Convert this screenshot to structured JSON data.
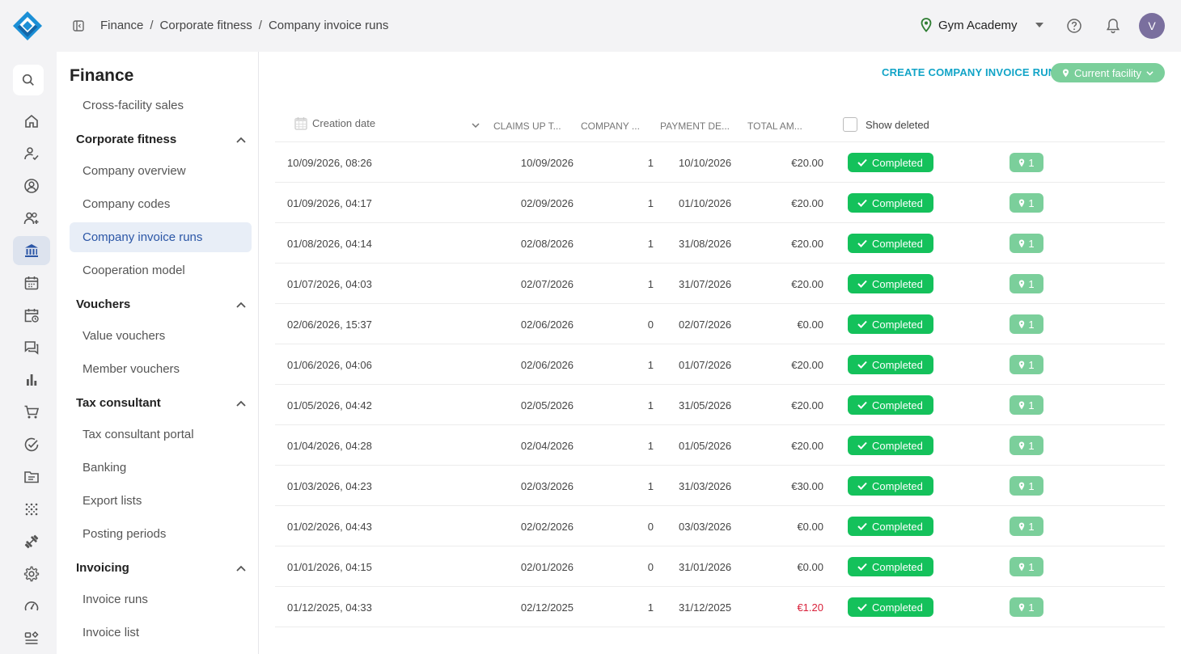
{
  "breadcrumb": [
    "Finance",
    "Corporate fitness",
    "Company invoice runs"
  ],
  "header": {
    "facility_name": "Gym Academy",
    "avatar_initial": "V"
  },
  "sidebar": {
    "title": "Finance",
    "items": {
      "cross_facility_sales": "Cross-facility sales",
      "corporate_fitness": "Corporate fitness",
      "company_overview": "Company overview",
      "company_codes": "Company codes",
      "company_invoice_runs": "Company invoice runs",
      "cooperation_model": "Cooperation model",
      "vouchers": "Vouchers",
      "value_vouchers": "Value vouchers",
      "member_vouchers": "Member vouchers",
      "tax_consultant": "Tax consultant",
      "tax_consultant_portal": "Tax consultant portal",
      "banking": "Banking",
      "export_lists": "Export lists",
      "posting_periods": "Posting periods",
      "invoicing": "Invoicing",
      "invoice_runs": "Invoice runs",
      "invoice_list": "Invoice list"
    }
  },
  "main": {
    "create_button": "CREATE COMPANY INVOICE RUN",
    "current_facility": "Current facility",
    "columns": {
      "creation_date": "Creation date",
      "claims": "CLAIMS UP T...",
      "company": "COMPANY ...",
      "payment": "PAYMENT DE...",
      "total": "TOTAL AM...",
      "show_deleted": "Show deleted"
    },
    "rows": [
      {
        "date": "10/09/2026, 08:26",
        "claims": "10/09/2026",
        "company": "1",
        "payment": "10/10/2026",
        "total": "€20.00",
        "status": "Completed",
        "facilities": "1"
      },
      {
        "date": "01/09/2026, 04:17",
        "claims": "02/09/2026",
        "company": "1",
        "payment": "01/10/2026",
        "total": "€20.00",
        "status": "Completed",
        "facilities": "1"
      },
      {
        "date": "01/08/2026, 04:14",
        "claims": "02/08/2026",
        "company": "1",
        "payment": "31/08/2026",
        "total": "€20.00",
        "status": "Completed",
        "facilities": "1"
      },
      {
        "date": "01/07/2026, 04:03",
        "claims": "02/07/2026",
        "company": "1",
        "payment": "31/07/2026",
        "total": "€20.00",
        "status": "Completed",
        "facilities": "1"
      },
      {
        "date": "02/06/2026, 15:37",
        "claims": "02/06/2026",
        "company": "0",
        "payment": "02/07/2026",
        "total": "€0.00",
        "status": "Completed",
        "facilities": "1"
      },
      {
        "date": "01/06/2026, 04:06",
        "claims": "02/06/2026",
        "company": "1",
        "payment": "01/07/2026",
        "total": "€20.00",
        "status": "Completed",
        "facilities": "1"
      },
      {
        "date": "01/05/2026, 04:42",
        "claims": "02/05/2026",
        "company": "1",
        "payment": "31/05/2026",
        "total": "€20.00",
        "status": "Completed",
        "facilities": "1"
      },
      {
        "date": "01/04/2026, 04:28",
        "claims": "02/04/2026",
        "company": "1",
        "payment": "01/05/2026",
        "total": "€20.00",
        "status": "Completed",
        "facilities": "1"
      },
      {
        "date": "01/03/2026, 04:23",
        "claims": "02/03/2026",
        "company": "1",
        "payment": "31/03/2026",
        "total": "€30.00",
        "status": "Completed",
        "facilities": "1"
      },
      {
        "date": "01/02/2026, 04:43",
        "claims": "02/02/2026",
        "company": "0",
        "payment": "03/03/2026",
        "total": "€0.00",
        "status": "Completed",
        "facilities": "1"
      },
      {
        "date": "01/01/2026, 04:15",
        "claims": "02/01/2026",
        "company": "0",
        "payment": "31/01/2026",
        "total": "€0.00",
        "status": "Completed",
        "facilities": "1"
      },
      {
        "date": "01/12/2025, 04:33",
        "claims": "02/12/2025",
        "company": "1",
        "payment": "31/12/2025",
        "total": "€1.20",
        "status": "Completed",
        "facilities": "1"
      }
    ]
  },
  "colors": {
    "accent": "#12a4c7",
    "status_completed": "#14c15b",
    "facility_badge": "#7bcf9b",
    "negative_amount": "#d9213a",
    "active_nav": "#2b56a6"
  }
}
